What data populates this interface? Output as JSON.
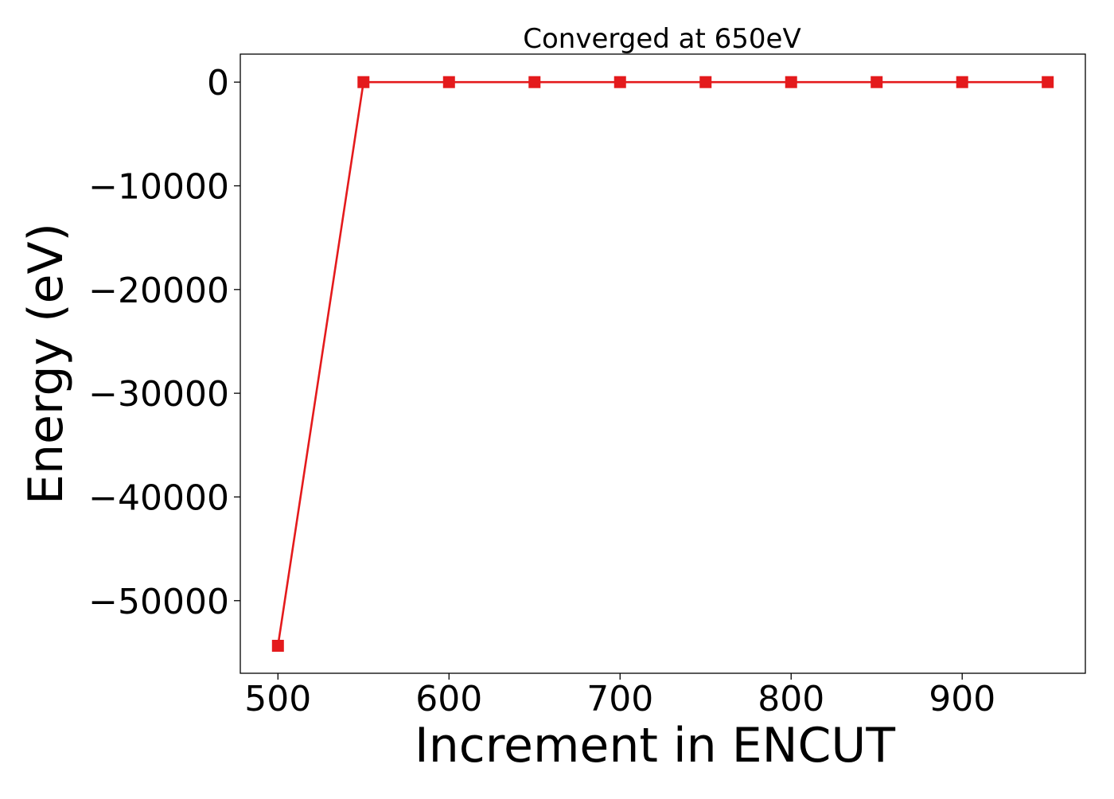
{
  "chart_data": {
    "type": "line",
    "title": "Converged at 650eV",
    "xlabel": "Increment in ENCUT",
    "ylabel": "Energy (eV)",
    "xlim": [
      478,
      972
    ],
    "ylim": [
      -57000,
      2700
    ],
    "xticks": [
      500,
      600,
      700,
      800,
      900
    ],
    "xtick_labels": [
      "500",
      "600",
      "700",
      "800",
      "900"
    ],
    "yticks": [
      0,
      -10000,
      -20000,
      -30000,
      -40000,
      -50000
    ],
    "ytick_labels": [
      "0",
      "−10000",
      "−20000",
      "−30000",
      "−40000",
      "−50000"
    ],
    "grid": false,
    "legend": "none",
    "series": [
      {
        "color": "#e41a1c",
        "marker": "square",
        "x": [
          500,
          550,
          600,
          650,
          700,
          750,
          800,
          850,
          900,
          950
        ],
        "y": [
          -54350,
          0,
          0,
          0,
          0,
          0,
          0,
          0,
          0,
          0
        ]
      }
    ]
  }
}
